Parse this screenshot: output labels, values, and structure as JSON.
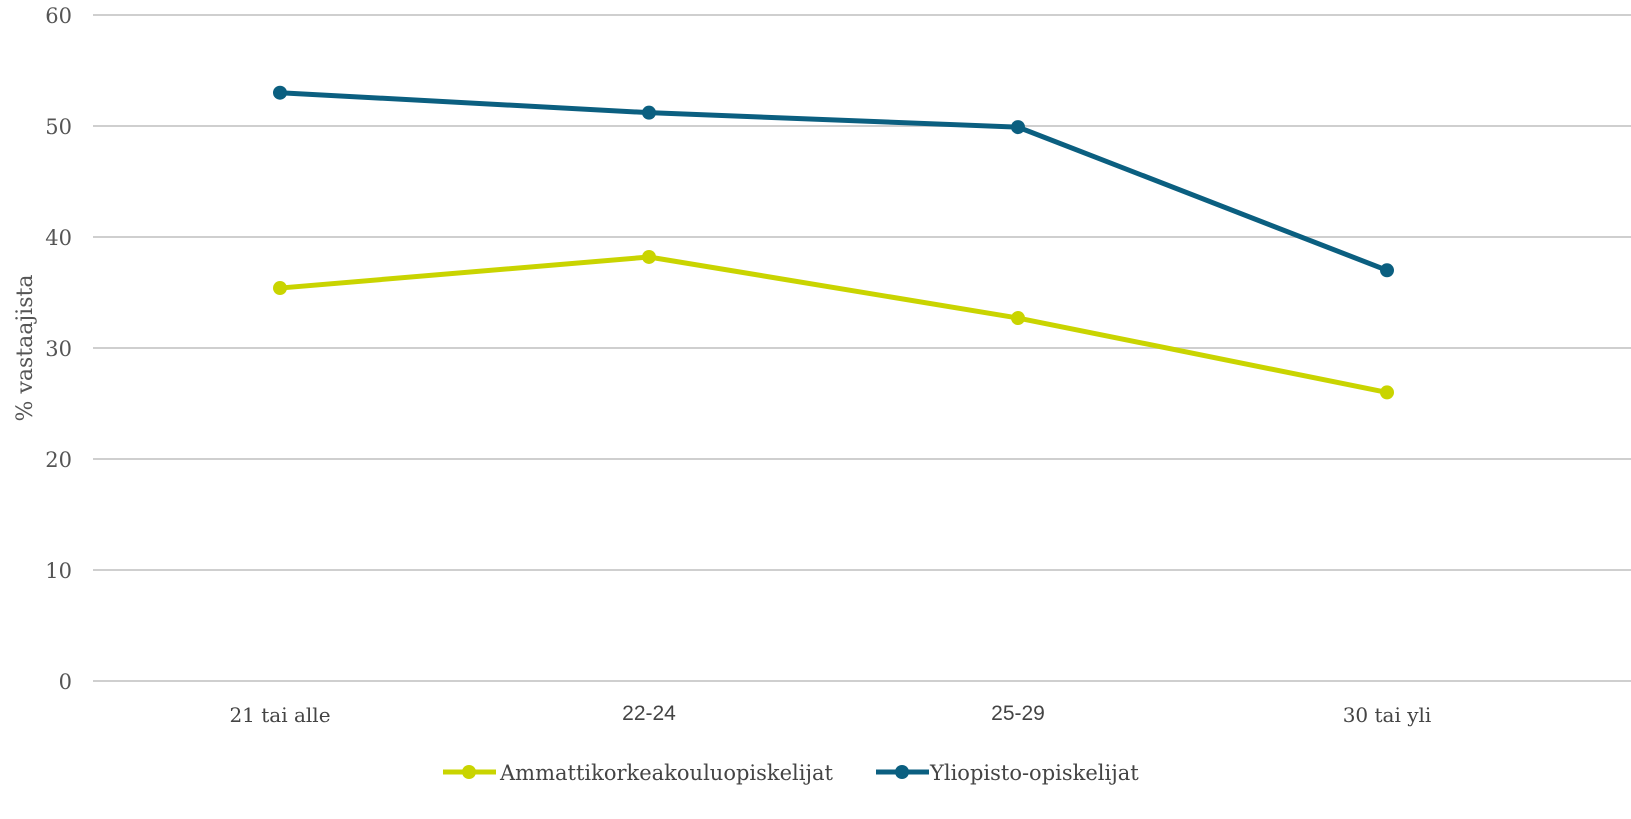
{
  "chart_data": {
    "type": "line",
    "categories": [
      "21 tai alle",
      "22-24",
      "25-29",
      "30 tai yli"
    ],
    "series": [
      {
        "name": "Ammattikorkeakouluopiskelijat",
        "values": [
          35.4,
          38.2,
          32.7,
          26.0
        ],
        "color": "#c9d400"
      },
      {
        "name": "Yliopisto-opiskelijat",
        "values": [
          53.0,
          51.2,
          49.9,
          37.0
        ],
        "color": "#0b5f80"
      }
    ],
    "title": "",
    "xlabel": "",
    "ylabel": "% vastaajista",
    "ylim": [
      0,
      60
    ],
    "yticks": [
      "0",
      "10",
      "20",
      "30",
      "40",
      "50",
      "60"
    ],
    "grid": true,
    "legend_position": "bottom"
  }
}
